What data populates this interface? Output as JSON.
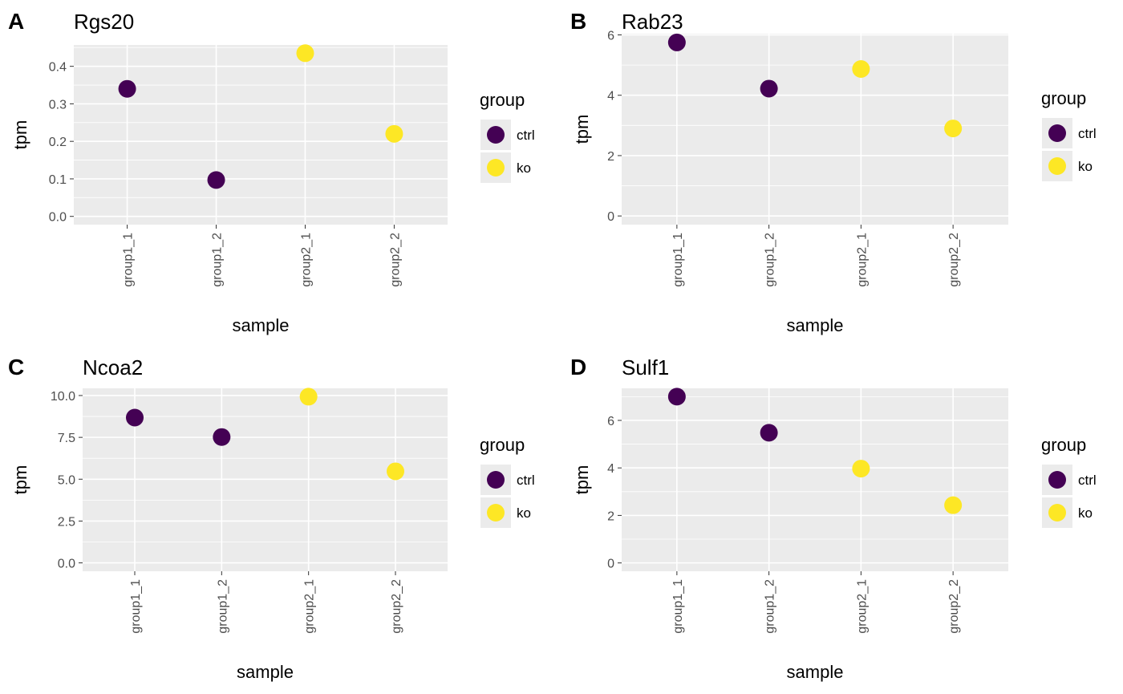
{
  "colors": {
    "panel_bg": "#ebebeb",
    "grid": "#ffffff",
    "tick": "#333333",
    "ctrl": "#440154",
    "ko": "#fde725"
  },
  "chart_data": [
    {
      "type": "scatter",
      "tag": "A",
      "title": "Rgs20",
      "xlabel": "sample",
      "ylabel": "tpm",
      "categories": [
        "group1_1",
        "group1_2",
        "group2_1",
        "group2_2"
      ],
      "values": [
        0.34,
        0.097,
        0.435,
        0.22
      ],
      "groups": [
        "ctrl",
        "ctrl",
        "ko",
        "ko"
      ],
      "ylim": [
        -0.022,
        0.457
      ],
      "yticks": [
        0.0,
        0.1,
        0.2,
        0.3,
        0.4
      ],
      "ytick_labels": [
        "0.0",
        "0.1",
        "0.2",
        "0.3",
        "0.4"
      ],
      "legend": {
        "title": "group",
        "entries": [
          "ctrl",
          "ko"
        ],
        "placement": "right"
      }
    },
    {
      "type": "scatter",
      "tag": "B",
      "title": "Rab23",
      "xlabel": "sample",
      "ylabel": "tpm",
      "categories": [
        "group1_1",
        "group1_2",
        "group2_1",
        "group2_2"
      ],
      "values": [
        5.75,
        4.22,
        4.87,
        2.9
      ],
      "groups": [
        "ctrl",
        "ctrl",
        "ko",
        "ko"
      ],
      "ylim": [
        -0.288,
        6.04
      ],
      "yticks": [
        0,
        2,
        4,
        6
      ],
      "ytick_labels": [
        "0",
        "2",
        "4",
        "6"
      ],
      "legend": {
        "title": "group",
        "entries": [
          "ctrl",
          "ko"
        ],
        "placement": "right"
      }
    },
    {
      "type": "scatter",
      "tag": "C",
      "title": "Ncoa2",
      "xlabel": "sample",
      "ylabel": "tpm",
      "categories": [
        "group1_1",
        "group1_2",
        "group2_1",
        "group2_2"
      ],
      "values": [
        8.68,
        7.52,
        9.93,
        5.47
      ],
      "groups": [
        "ctrl",
        "ctrl",
        "ko",
        "ko"
      ],
      "ylim": [
        -0.5,
        10.43
      ],
      "yticks": [
        0.0,
        2.5,
        5.0,
        7.5,
        10.0
      ],
      "ytick_labels": [
        "0.0",
        "2.5",
        "5.0",
        "7.5",
        "10.0"
      ],
      "legend": {
        "title": "group",
        "entries": [
          "ctrl",
          "ko"
        ],
        "placement": "right"
      }
    },
    {
      "type": "scatter",
      "tag": "D",
      "title": "Sulf1",
      "xlabel": "sample",
      "ylabel": "tpm",
      "categories": [
        "group1_1",
        "group1_2",
        "group2_1",
        "group2_2"
      ],
      "values": [
        7.0,
        5.48,
        3.97,
        2.43
      ],
      "groups": [
        "ctrl",
        "ctrl",
        "ko",
        "ko"
      ],
      "ylim": [
        -0.35,
        7.35
      ],
      "yticks": [
        0,
        2,
        4,
        6
      ],
      "ytick_labels": [
        "0",
        "2",
        "4",
        "6"
      ],
      "legend": {
        "title": "group",
        "entries": [
          "ctrl",
          "ko"
        ],
        "placement": "right"
      }
    }
  ]
}
